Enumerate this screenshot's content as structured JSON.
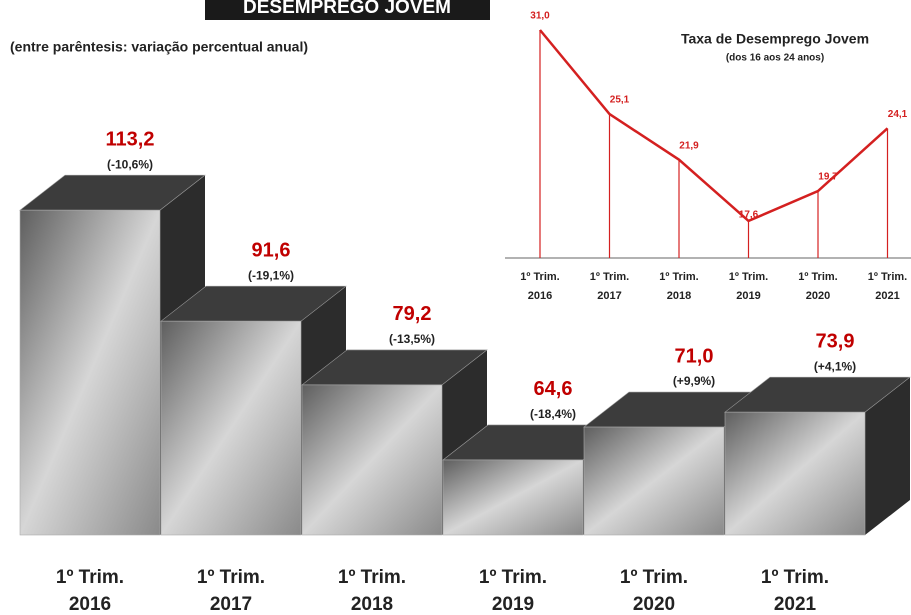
{
  "chart_data": [
    {
      "type": "bar3d",
      "title": "DESEMPREGO JOVEM",
      "subtitle": "(entre parêntesis: variação percentual anual)",
      "categories": [
        [
          "1º Trim.",
          "2016"
        ],
        [
          "1º Trim.",
          "2017"
        ],
        [
          "1º Trim.",
          "2018"
        ],
        [
          "1º Trim.",
          "2019"
        ],
        [
          "1º Trim.",
          "2020"
        ],
        [
          "1º Trim.",
          "2021"
        ]
      ],
      "values": [
        113.2,
        91.6,
        79.2,
        64.6,
        71.0,
        73.9
      ],
      "value_labels": [
        "113,2",
        "91,6",
        "79,2",
        "64,6",
        "71,0",
        "73,9"
      ],
      "annotations": [
        "(-10,6%)",
        "(-19,1%)",
        "(-13,5%)",
        "(-18,4%)",
        "(+9,9%)",
        "(+4,1%)"
      ],
      "color": "#c00000",
      "ylim": [
        50,
        115
      ]
    },
    {
      "type": "line",
      "title": "Taxa de Desemprego Jovem",
      "subtitle": "(dos 16 aos 24 anos)",
      "categories": [
        [
          "1º Trim.",
          "2016"
        ],
        [
          "1º Trim.",
          "2017"
        ],
        [
          "1º Trim.",
          "2018"
        ],
        [
          "1º Trim.",
          "2019"
        ],
        [
          "1º Trim.",
          "2020"
        ],
        [
          "1º Trim.",
          "2021"
        ]
      ],
      "values": [
        31.0,
        25.1,
        21.9,
        17.6,
        19.7,
        24.1
      ],
      "value_labels": [
        "31,0",
        "25,1",
        "21,9",
        "17,6",
        "19,7",
        "24,1"
      ],
      "color": "#d42020",
      "ylim": [
        15,
        31
      ]
    }
  ]
}
